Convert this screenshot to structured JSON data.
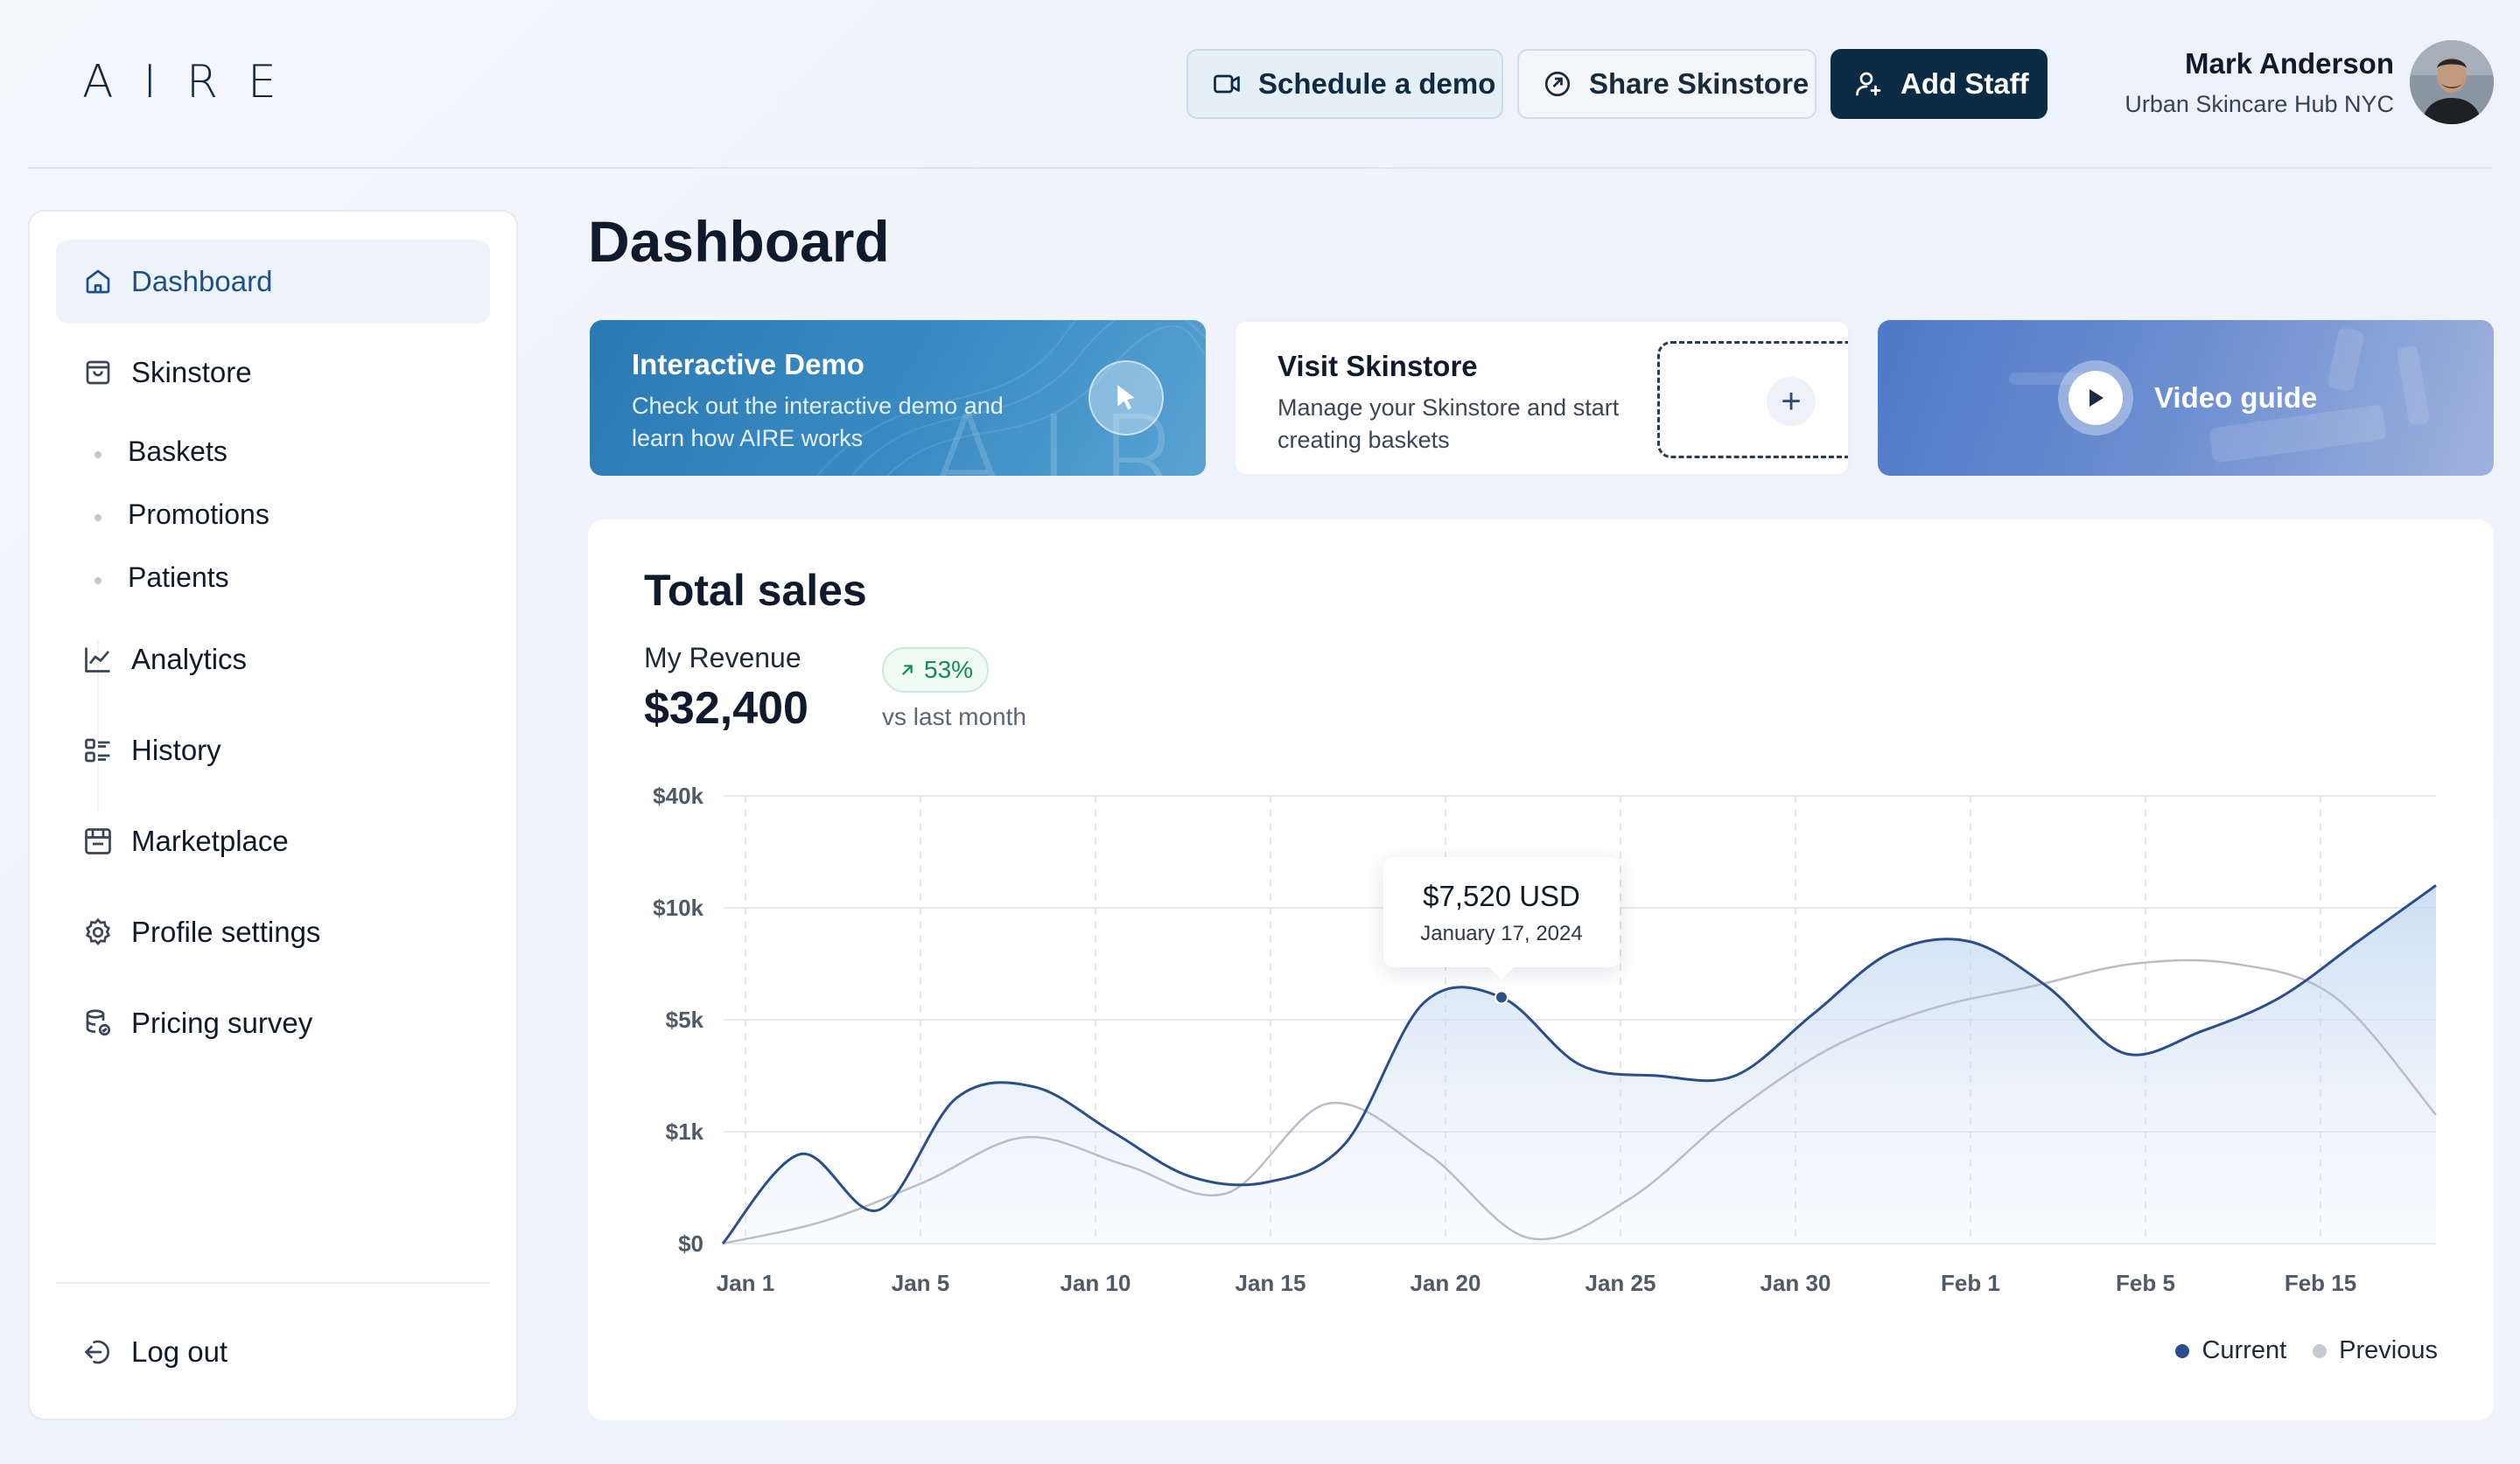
{
  "brand": {
    "logo": "AIRE"
  },
  "header": {
    "schedule_label": "Schedule a demo",
    "share_label": "Share Skinstore",
    "add_staff_label": "Add Staff",
    "user_name": "Mark Anderson",
    "user_org": "Urban Skincare Hub NYC"
  },
  "sidebar": {
    "items": [
      {
        "label": "Dashboard",
        "icon": "home-icon",
        "active": true
      },
      {
        "label": "Skinstore",
        "icon": "bag-icon"
      },
      {
        "label": "Analytics",
        "icon": "chart-line-icon"
      },
      {
        "label": "History",
        "icon": "list-icon"
      },
      {
        "label": "Marketplace",
        "icon": "store-icon"
      },
      {
        "label": "Profile settings",
        "icon": "gear-icon"
      },
      {
        "label": "Pricing survey",
        "icon": "survey-icon"
      }
    ],
    "subitems": [
      "Baskets",
      "Promotions",
      "Patients"
    ],
    "logout_label": "Log out"
  },
  "main": {
    "title": "Dashboard",
    "cards": {
      "demo": {
        "title": "Interactive Demo",
        "desc": "Check out the interactive demo and learn how AIRE works",
        "watermark": "AIRE"
      },
      "visit": {
        "title": "Visit Skinstore",
        "desc": "Manage your Skinstore and start creating baskets"
      },
      "video": {
        "label": "Video guide"
      }
    }
  },
  "sales": {
    "title": "Total sales",
    "revenue_label": "My Revenue",
    "revenue_value": "$32,400",
    "badge": "53%",
    "vs_label": "vs last month",
    "tooltip": {
      "value": "$7,520 USD",
      "date": "January 17, 2024"
    },
    "legend": {
      "current": "Current",
      "previous": "Previous"
    }
  },
  "colors": {
    "current": "#2a4e8c",
    "previous": "#b8bec8",
    "accent": "#0b2a44",
    "badge": "#128a55"
  },
  "chart_data": {
    "type": "area",
    "x_ticks": [
      "Jan 1",
      "Jan 5",
      "Jan 10",
      "Jan 15",
      "Jan 20",
      "Jan 25",
      "Jan 30",
      "Feb 1",
      "Feb 5",
      "Feb 15"
    ],
    "y_ticks": [
      "$0",
      "$1k",
      "$5k",
      "$10k",
      "$40k"
    ],
    "y_scale": "categorical-tick (non-linear)",
    "grid": true,
    "legend_position": "bottom-right",
    "series": [
      {
        "name": "Current",
        "values": [
          0,
          0.8,
          0.3,
          1.3,
          1.4,
          1.0,
          0.6,
          0.55,
          0.9,
          2.15,
          2.2,
          1.6,
          1.5,
          1.5,
          2.05,
          2.6,
          2.7,
          2.3,
          1.7,
          1.9,
          2.2,
          2.7,
          3.2
        ]
      },
      {
        "name": "Previous",
        "values": [
          0,
          0.2,
          0.55,
          0.95,
          0.7,
          0.45,
          1.25,
          0.8,
          0.05,
          0.4,
          1.15,
          1.75,
          2.1,
          2.3,
          2.5,
          2.5,
          2.2,
          1.15
        ]
      }
    ],
    "highlight": {
      "value": 7520,
      "label": "$7,520 USD",
      "date": "January 17, 2024"
    }
  }
}
